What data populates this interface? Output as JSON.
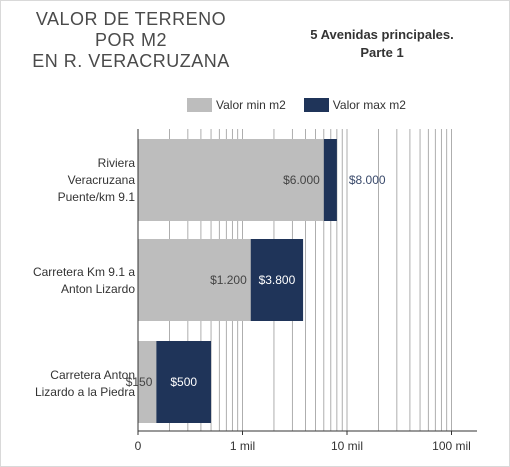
{
  "title_lines": [
    "VALOR DE TERRENO",
    "POR M2",
    "EN R. VERACRUZANA"
  ],
  "subtitle_lines": [
    "5 Avenidas principales.",
    "Parte 1"
  ],
  "chart_data": {
    "type": "bar",
    "orientation": "horizontal",
    "stacked": "overlapping",
    "xscale": "log",
    "xlim": [
      0,
      100000
    ],
    "xticks": [
      {
        "value": 0,
        "label": "0"
      },
      {
        "value": 1000,
        "label": "1 mil"
      },
      {
        "value": 10000,
        "label": "10 mil"
      },
      {
        "value": 100000,
        "label": "100 mil"
      }
    ],
    "categories": [
      [
        "Riviera",
        "Veracruzana",
        "Puente/km 9.1"
      ],
      [
        "Carretera Km 9.1 a",
        "Anton Lizardo"
      ],
      [
        "Carretera Anton",
        "Lizardo a la Piedra"
      ]
    ],
    "series": [
      {
        "name": "Valor min m2",
        "color": "#bdbdbd",
        "values": [
          6000,
          1200,
          150
        ],
        "labels": [
          "$6.000",
          "$1.200",
          "$150"
        ]
      },
      {
        "name": "Valor max m2",
        "color": "#1f3459",
        "values": [
          8000,
          3800,
          500
        ],
        "labels": [
          "$8.000",
          "$3.800",
          "$500"
        ]
      }
    ],
    "legend_position": "top",
    "grid": "vertical"
  }
}
